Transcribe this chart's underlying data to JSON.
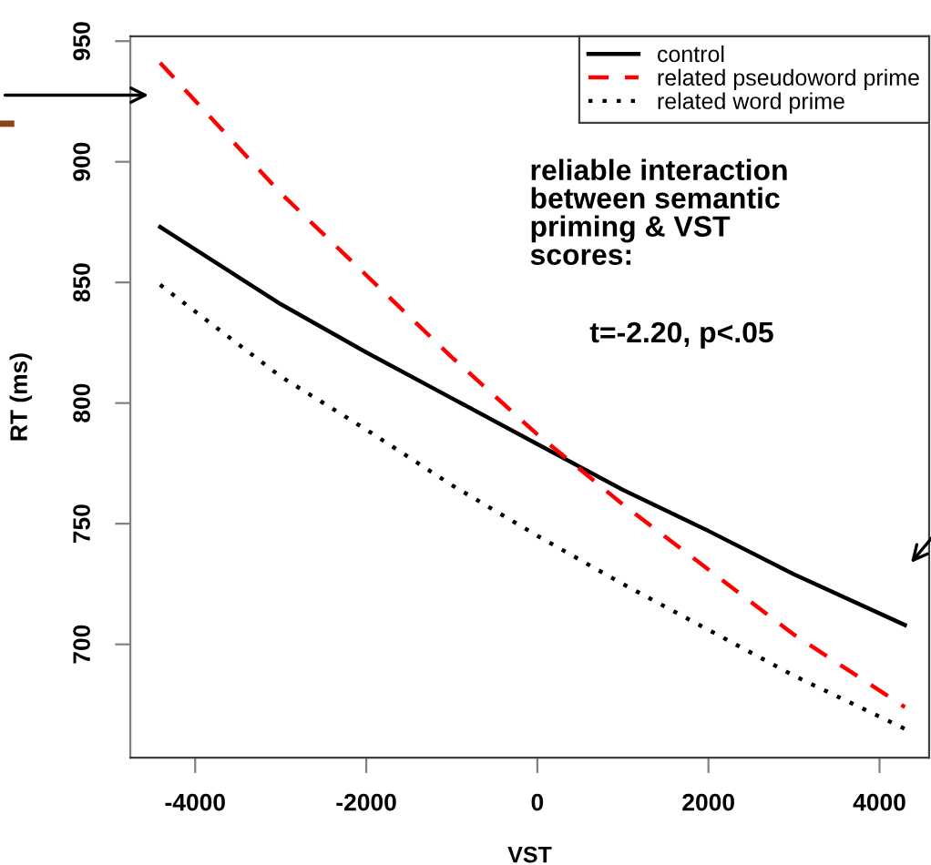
{
  "chart_data": {
    "type": "line",
    "xlabel": "VST",
    "ylabel": "RT (ms)",
    "x": [
      -4410,
      -3000,
      -2000,
      -1000,
      0,
      1000,
      2000,
      3000,
      4297
    ],
    "series": [
      {
        "name": "control",
        "color": "#000000",
        "line_style": "solid",
        "values": [
          873,
          841,
          821,
          802,
          783,
          764,
          747,
          729,
          708
        ]
      },
      {
        "name": "related pseudoword prime",
        "color": "#ff0000",
        "line_style": "dashed",
        "values": [
          941,
          887,
          853,
          819,
          787,
          758,
          731,
          704,
          674
        ]
      },
      {
        "name": "related word prime",
        "color": "#000000",
        "line_style": "dotted",
        "values": [
          849,
          811,
          789,
          766,
          745,
          725,
          706,
          687,
          665
        ]
      }
    ],
    "xlim": [
      -4758,
      4580
    ],
    "ylim": [
      653,
      952
    ],
    "xticks": [
      -4000,
      -2000,
      0,
      2000,
      4000
    ],
    "yticks": [
      700,
      750,
      800,
      850,
      900,
      950
    ],
    "grid": false,
    "legend": "top right",
    "marker": "none",
    "annotations": [
      "reliable interaction\nbetween semantic\npriming & VST\nscores:",
      "t=-2.20, p<.05"
    ]
  }
}
